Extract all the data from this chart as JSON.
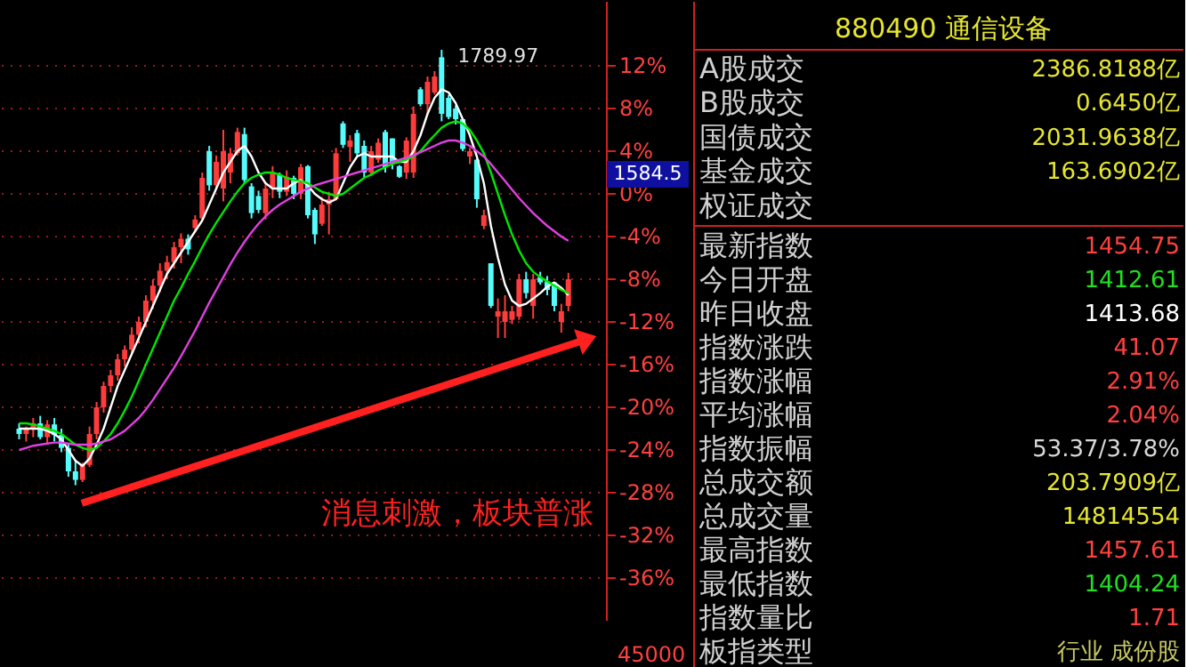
{
  "chart_data": [
    {
      "type": "candlestick",
      "categories": [
        null,
        null,
        null,
        null,
        null,
        null,
        null,
        null,
        null,
        null,
        null,
        null,
        null,
        null,
        null,
        null,
        null,
        null,
        null,
        null,
        null,
        null,
        null,
        null,
        null,
        null,
        null,
        null,
        null,
        null,
        null,
        null,
        null,
        null,
        null,
        null,
        null,
        null,
        null,
        null,
        null,
        null,
        null,
        null,
        null,
        null,
        null,
        null,
        null,
        null,
        null,
        null,
        null,
        null,
        null,
        null,
        null,
        null,
        null,
        null,
        null,
        null,
        null,
        null,
        null,
        null,
        null,
        null,
        null,
        null,
        null,
        null,
        null,
        null,
        null,
        null,
        null,
        null,
        null
      ],
      "ohlc": [
        [
          -22,
          -21.5,
          -23,
          -22.5
        ],
        [
          -22.5,
          -21.8,
          -23.2,
          -22
        ],
        [
          -22,
          -21,
          -22.8,
          -21.5
        ],
        [
          -21.5,
          -20.8,
          -23,
          -22.8
        ],
        [
          -22.8,
          -21.2,
          -23.5,
          -21.6
        ],
        [
          -21.6,
          -21,
          -23.2,
          -22.6
        ],
        [
          -22.6,
          -22,
          -24.2,
          -23.8
        ],
        [
          -23.8,
          -23.5,
          -26.5,
          -26
        ],
        [
          -26,
          -25,
          -27.3,
          -26.8
        ],
        [
          -26.8,
          -25.2,
          -27,
          -25.4
        ],
        [
          -25.4,
          -21.8,
          -25.6,
          -22.5
        ],
        [
          -22.5,
          -19.5,
          -23,
          -20
        ],
        [
          -20,
          -17.6,
          -20.5,
          -18
        ],
        [
          -18,
          -16.5,
          -18.6,
          -17
        ],
        [
          -17,
          -15,
          -17.5,
          -15.5
        ],
        [
          -15.5,
          -14.2,
          -16.2,
          -14.6
        ],
        [
          -14.6,
          -12.5,
          -15,
          -13.2
        ],
        [
          -13.2,
          -11.5,
          -14,
          -12
        ],
        [
          -12,
          -9.5,
          -12.5,
          -10
        ],
        [
          -10,
          -8,
          -10.8,
          -8.6
        ],
        [
          -8.6,
          -6.5,
          -9.2,
          -7.2
        ],
        [
          -7.2,
          -5.8,
          -8,
          -6.4
        ],
        [
          -6.4,
          -4.5,
          -7,
          -5
        ],
        [
          -5,
          -3.7,
          -6.5,
          -4.2
        ],
        [
          -4.2,
          -3.8,
          -5.7,
          -5.2
        ],
        [
          -3.2,
          -2,
          -3.5,
          -2.4
        ],
        [
          -2.3,
          2,
          -2.4,
          1.5
        ],
        [
          4,
          4.5,
          0.3,
          0.8
        ],
        [
          0.8,
          3.6,
          0.4,
          3
        ],
        [
          0.5,
          6,
          -0.7,
          4
        ],
        [
          2,
          4.3,
          1,
          3.8
        ],
        [
          3.8,
          6.2,
          3.6,
          5.8
        ],
        [
          5.6,
          6.2,
          1,
          1.3
        ],
        [
          0.7,
          1,
          -2.3,
          -1.8
        ],
        [
          -0.2,
          0.3,
          -1.8,
          -1.5
        ],
        [
          -1.8,
          1,
          -2.4,
          0.5
        ],
        [
          0.5,
          2.6,
          -0.4,
          2
        ],
        [
          1.8,
          2,
          -0.4,
          0.2
        ],
        [
          0.2,
          2.2,
          -0.2,
          1.6
        ],
        [
          1.5,
          1.7,
          -0.5,
          0
        ],
        [
          0,
          2.8,
          -0.5,
          2.5
        ],
        [
          2.6,
          2.7,
          -2.3,
          -2
        ],
        [
          -1.5,
          -1.3,
          -4.7,
          -3.8
        ],
        [
          -2.8,
          -0.3,
          -3,
          -1
        ],
        [
          -1,
          0.2,
          -3.8,
          -0.5
        ],
        [
          -0.5,
          4.3,
          -0.6,
          3.8
        ],
        [
          6.6,
          6.8,
          4.3,
          4.6
        ],
        [
          4.4,
          5.5,
          3,
          5
        ],
        [
          5.7,
          6,
          3.5,
          3.8
        ],
        [
          4.5,
          5,
          1.5,
          2
        ],
        [
          2,
          4.5,
          1.7,
          4
        ],
        [
          3.2,
          5.2,
          2.9,
          4.8
        ],
        [
          5.8,
          6,
          2,
          2.5
        ],
        [
          5.2,
          5.2,
          2.3,
          2.8
        ],
        [
          2.6,
          2.7,
          1.5,
          1.6
        ],
        [
          2,
          5.3,
          1.4,
          5
        ],
        [
          2,
          8.2,
          1.5,
          7.5
        ],
        [
          9.8,
          10,
          8.2,
          8.4
        ],
        [
          8.4,
          11,
          7.5,
          10.5
        ],
        [
          9.5,
          11.5,
          9.3,
          11
        ],
        [
          12.8,
          13.5,
          6.8,
          7.5
        ],
        [
          9,
          9.3,
          7,
          7.2
        ],
        [
          8,
          8.3,
          6.5,
          7
        ],
        [
          7,
          7,
          4,
          4.2
        ],
        [
          3.5,
          4.3,
          2.8,
          4
        ],
        [
          3.2,
          3.3,
          -1.3,
          -0.5
        ],
        [
          -3,
          -1.5,
          -3.3,
          -2
        ],
        [
          -6.5,
          -6.5,
          -10.7,
          -10.5
        ],
        [
          -11.5,
          -9.8,
          -13.5,
          -11
        ],
        [
          -12,
          -9.5,
          -13.5,
          -11
        ],
        [
          -11.8,
          -10.5,
          -12.2,
          -11
        ],
        [
          -11.5,
          -7.5,
          -11.8,
          -8
        ],
        [
          -8,
          -7.3,
          -9.8,
          -9.3
        ],
        [
          -10.5,
          -7.5,
          -11.7,
          -8
        ],
        [
          -7.8,
          -7.3,
          -8.5,
          -8.3
        ],
        [
          -8.2,
          -7.7,
          -9.5,
          -9
        ],
        [
          -8.3,
          -8.3,
          -11,
          -10.5
        ],
        [
          -12,
          -10.3,
          -13,
          -11
        ],
        [
          -10.5,
          -7.4,
          -11,
          -8
        ]
      ],
      "colors": [
        "#54fcfc",
        "#ff3c3c",
        "#ff3c3c",
        "#54fcfc",
        "#ff3c3c",
        "#54fcfc",
        "#54fcfc",
        "#54fcfc",
        "#54fcfc",
        "#ff3c3c",
        "#ff3c3c",
        "#ff3c3c",
        "#ff3c3c",
        "#ff3c3c",
        "#ff3c3c",
        "#ff3c3c",
        "#ff3c3c",
        "#ff3c3c",
        "#ff3c3c",
        "#ff3c3c",
        "#ff3c3c",
        "#ff3c3c",
        "#ff3c3c",
        "#ff3c3c",
        "#54fcfc",
        "#ff3c3c",
        "#ff3c3c",
        "#54fcfc",
        "#ff3c3c",
        "#ff3c3c",
        "#ff3c3c",
        "#ff3c3c",
        "#54fcfc",
        "#54fcfc",
        "#54fcfc",
        "#ff3c3c",
        "#ff3c3c",
        "#54fcfc",
        "#ff3c3c",
        "#54fcfc",
        "#ff3c3c",
        "#54fcfc",
        "#54fcfc",
        "#ff3c3c",
        "#ff3c3c",
        "#ff3c3c",
        "#54fcfc",
        "#ff3c3c",
        "#54fcfc",
        "#54fcfc",
        "#ff3c3c",
        "#ff3c3c",
        "#54fcfc",
        "#54fcfc",
        "#54fcfc",
        "#ff3c3c",
        "#ff3c3c",
        "#54fcfc",
        "#ff3c3c",
        "#ff3c3c",
        "#54fcfc",
        "#54fcfc",
        "#54fcfc",
        "#54fcfc",
        "#ff3c3c",
        "#54fcfc",
        "#ff3c3c",
        "#54fcfc",
        "#ff3c3c",
        "#ff3c3c",
        "#ff3c3c",
        "#ff3c3c",
        "#54fcfc",
        "#ff3c3c",
        "#54fcfc",
        "#54fcfc",
        "#54fcfc",
        "#ff3c3c",
        "#ff3c3c"
      ],
      "series": [
        {
          "type": "line",
          "color": "#ffffff",
          "values": [
            -22,
            -22,
            -22,
            -22,
            -22.2,
            -22.5,
            -23,
            -24,
            -25,
            -25.5,
            -24.8,
            -23.5,
            -22,
            -20,
            -18,
            -16.5,
            -15,
            -13.5,
            -12,
            -10.5,
            -9,
            -7.5,
            -6.5,
            -5.5,
            -4.5,
            -3.5,
            -2.5,
            -1,
            0.5,
            2,
            3,
            4,
            4.5,
            3.5,
            2,
            1,
            0.5,
            0.5,
            0.5,
            1,
            1.3,
            0.8,
            0,
            -0.5,
            -0.8,
            -0.5,
            1,
            2.5,
            3.5,
            3.8,
            3.5,
            3.5,
            3.5,
            3.5,
            3,
            3,
            4,
            5.5,
            7.5,
            9,
            9.8,
            9.5,
            8.5,
            7,
            5.5,
            3.5,
            1,
            -3,
            -6,
            -8.5,
            -10,
            -10.5,
            -10.3,
            -9.8,
            -9.3,
            -8.7,
            -8.3,
            -8.8,
            -9.5
          ]
        },
        {
          "type": "line",
          "color": "#00e600",
          "values": [
            -21.5,
            -21.5,
            -21.6,
            -21.8,
            -22,
            -22.2,
            -22.5,
            -23,
            -23.5,
            -23.8,
            -24,
            -23.8,
            -23.2,
            -22.5,
            -21.5,
            -20.3,
            -19,
            -17.5,
            -16,
            -14.5,
            -13,
            -11.5,
            -10,
            -8.8,
            -7.5,
            -6.3,
            -5,
            -3.8,
            -2.7,
            -1.7,
            -0.7,
            0.2,
            1,
            1.5,
            1.8,
            2,
            2,
            1.8,
            1.5,
            1.3,
            1.2,
            1,
            0.6,
            0.2,
            0,
            -0.2,
            0,
            0.5,
            1,
            1.5,
            1.8,
            2.2,
            2.5,
            2.8,
            3,
            3.2,
            3.5,
            4,
            4.8,
            5.5,
            6.2,
            6.6,
            6.8,
            6.6,
            6,
            5,
            3.8,
            2,
            0,
            -2,
            -3.8,
            -5.3,
            -6.5,
            -7.3,
            -7.8,
            -8.2,
            -8.6,
            -9,
            -9.3
          ]
        },
        {
          "type": "line",
          "color": "#e040e0",
          "values": [
            -24,
            -23.8,
            -23.6,
            -23.5,
            -23.4,
            -23.3,
            -23.3,
            -23.4,
            -23.5,
            -23.5,
            -23.5,
            -23.4,
            -23.2,
            -23,
            -22.6,
            -22.2,
            -21.6,
            -21,
            -20.2,
            -19.3,
            -18.3,
            -17.3,
            -16.3,
            -15.2,
            -14,
            -12.8,
            -11.5,
            -10.2,
            -9,
            -7.8,
            -6.6,
            -5.5,
            -4.5,
            -3.6,
            -2.8,
            -2.1,
            -1.5,
            -1,
            -0.6,
            -0.2,
            0.2,
            0.5,
            0.8,
            1,
            1.2,
            1.4,
            1.6,
            1.8,
            2,
            2.2,
            2.4,
            2.6,
            2.8,
            3,
            3.2,
            3.4,
            3.6,
            3.9,
            4.2,
            4.5,
            4.8,
            5,
            5,
            4.8,
            4.5,
            4,
            3.5,
            2.8,
            2,
            1.2,
            0.4,
            -0.4,
            -1.1,
            -1.8,
            -2.4,
            -3,
            -3.5,
            -4,
            -4.4
          ]
        }
      ],
      "ylim": [
        -40,
        18
      ],
      "yticks": [
        {
          "value": 12,
          "label": "12%"
        },
        {
          "value": 8,
          "label": "8%"
        },
        {
          "value": 4,
          "label": "4%"
        },
        {
          "value": 0,
          "label": "0%"
        },
        {
          "value": -4,
          "label": "-4%"
        },
        {
          "value": -8,
          "label": "-8%"
        },
        {
          "value": -12,
          "label": "-12%"
        },
        {
          "value": -16,
          "label": "-16%"
        },
        {
          "value": -20,
          "label": "-20%"
        },
        {
          "value": -24,
          "label": "-24%"
        },
        {
          "value": -28,
          "label": "-28%"
        },
        {
          "value": -32,
          "label": "-32%"
        },
        {
          "value": -36,
          "label": "-36%"
        }
      ],
      "grid": "y",
      "legend": false,
      "tick_labels": "y",
      "annotations": [
        "1789.97",
        "1584.5",
        "消息刺激，板块普涨",
        "45000"
      ]
    },
    {
      "type": "other",
      "title": "880490 通信设备",
      "categories": [
        "A股成交",
        "B股成交",
        "国债成交",
        "基金成交",
        "权证成交",
        "最新指数",
        "今日开盘",
        "昨日收盘",
        "指数涨跌",
        "指数涨幅",
        "平均涨幅",
        "指数振幅",
        "总成交额",
        "总成交量",
        "最高指数",
        "最低指数",
        "指数量比",
        "板指类型"
      ],
      "value_labels": [
        "2386.8188亿",
        "0.6450亿",
        "2031.9638亿",
        "163.6902亿",
        null,
        "1454.75",
        "1412.61",
        "1413.68",
        "41.07",
        "2.91%",
        "2.04%",
        "53.37/3.78%",
        "203.7909亿",
        "14814554",
        "1457.61",
        "1404.24",
        "1.71",
        "行业 成份股"
      ],
      "colors": [
        "#e6e632",
        "#e6e632",
        "#e6e632",
        "#e6e632",
        null,
        "#ff4040",
        "#20e020",
        "#ffffff",
        "#ff4040",
        "#ff4040",
        "#ff4040",
        "#d8d8d8",
        "#e6e632",
        "#e6e632",
        "#ff4040",
        "#20e020",
        "#ff4040",
        "#c8c864"
      ]
    }
  ]
}
